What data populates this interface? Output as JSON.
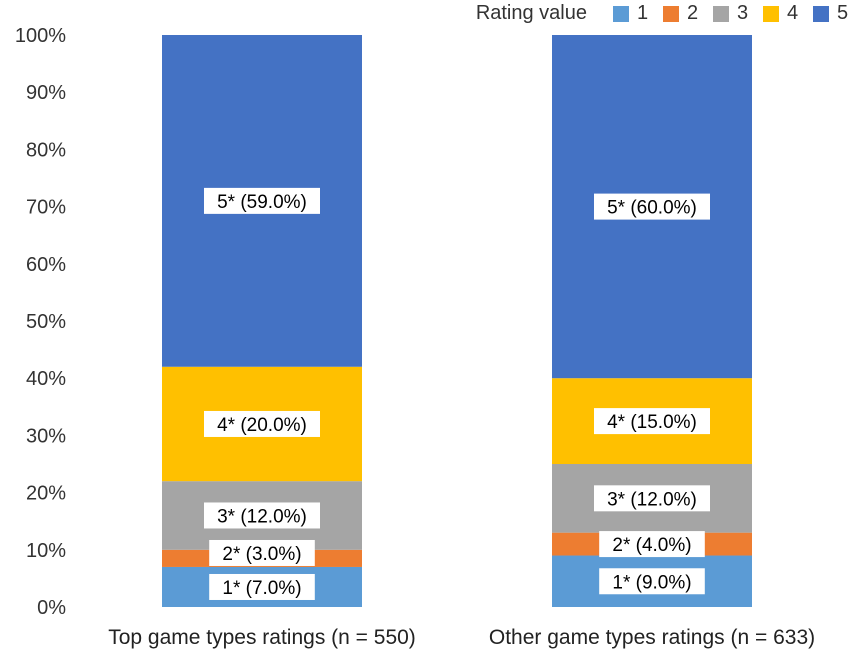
{
  "chart_data": {
    "type": "bar",
    "stacked": true,
    "categories": [
      "Top game types ratings (n = 550)",
      "Other game types ratings (n = 633)"
    ],
    "series": [
      {
        "name": "1",
        "values": [
          7.0,
          9.0
        ],
        "labels": [
          "1* (7.0%)",
          "1* (9.0%)"
        ],
        "color": "#5b9bd5"
      },
      {
        "name": "2",
        "values": [
          3.0,
          4.0
        ],
        "labels": [
          "2* (3.0%)",
          "2* (4.0%)"
        ],
        "color": "#ed7d31"
      },
      {
        "name": "3",
        "values": [
          12.0,
          12.0
        ],
        "labels": [
          "3* (12.0%)",
          "3* (12.0%)"
        ],
        "color": "#a5a5a5"
      },
      {
        "name": "4",
        "values": [
          20.0,
          15.0
        ],
        "labels": [
          "4* (20.0%)",
          "4* (15.0%)"
        ],
        "color": "#ffc000"
      },
      {
        "name": "5",
        "values": [
          59.0,
          60.0
        ],
        "labels": [
          "5* (59.0%)",
          "5* (60.0%)"
        ],
        "color": "#4472c4"
      }
    ],
    "y_ticks": [
      "0%",
      "10%",
      "20%",
      "30%",
      "40%",
      "50%",
      "60%",
      "70%",
      "80%",
      "90%",
      "100%"
    ],
    "ylim": [
      0,
      100
    ],
    "legend": {
      "title": "Rating value",
      "placement": "top-right"
    },
    "grid": false
  }
}
